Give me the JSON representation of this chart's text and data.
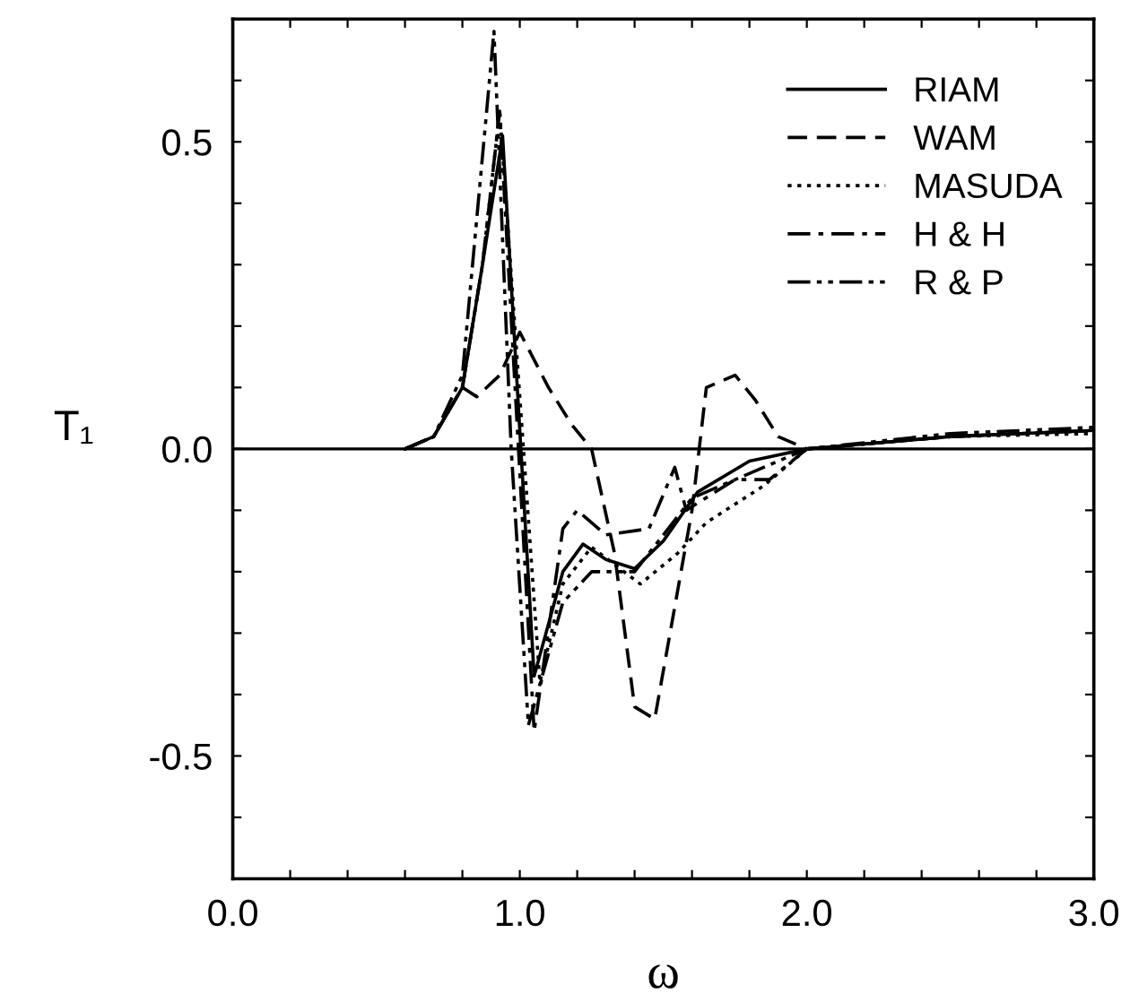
{
  "chart_data": {
    "type": "line",
    "xlabel": "ω",
    "ylabel": "T₁",
    "xlim": [
      0,
      3
    ],
    "ylim": [
      -0.7,
      0.7
    ],
    "xticks": [
      {
        "value": 0,
        "label": "0.0"
      },
      {
        "value": 0.2,
        "label": null
      },
      {
        "value": 0.4,
        "label": null
      },
      {
        "value": 0.6,
        "label": null
      },
      {
        "value": 0.8,
        "label": null
      },
      {
        "value": 1,
        "label": "1.0"
      },
      {
        "value": 1.2,
        "label": null
      },
      {
        "value": 1.4,
        "label": null
      },
      {
        "value": 1.6,
        "label": null
      },
      {
        "value": 1.8,
        "label": null
      },
      {
        "value": 2,
        "label": "2.0"
      },
      {
        "value": 2.2,
        "label": null
      },
      {
        "value": 2.4,
        "label": null
      },
      {
        "value": 2.6,
        "label": null
      },
      {
        "value": 2.8,
        "label": null
      },
      {
        "value": 3,
        "label": "3.0"
      }
    ],
    "yticks": [
      {
        "value": -0.6,
        "label": null
      },
      {
        "value": -0.5,
        "label": "-0.5"
      },
      {
        "value": -0.4,
        "label": null
      },
      {
        "value": -0.3,
        "label": null
      },
      {
        "value": -0.2,
        "label": null
      },
      {
        "value": -0.1,
        "label": null
      },
      {
        "value": 0,
        "label": "0.0"
      },
      {
        "value": 0.1,
        "label": null
      },
      {
        "value": 0.2,
        "label": null
      },
      {
        "value": 0.3,
        "label": null
      },
      {
        "value": 0.4,
        "label": null
      },
      {
        "value": 0.5,
        "label": "0.5"
      },
      {
        "value": 0.6,
        "label": null
      }
    ],
    "ref_lines": [
      {
        "axis": "y",
        "value": 0,
        "color": "#000000",
        "line_style": "solid"
      }
    ],
    "legend": "top right",
    "grid": false,
    "series": [
      {
        "name": "RIAM",
        "color": "#000000",
        "line_style": "solid",
        "x": [
          0.6,
          0.7,
          0.8,
          0.87,
          0.94,
          1.05,
          1.15,
          1.22,
          1.3,
          1.4,
          1.5,
          1.62,
          1.8,
          2.0,
          2.5,
          3.0
        ],
        "values": [
          0,
          0.02,
          0.1,
          0.3,
          0.51,
          -0.37,
          -0.2,
          -0.155,
          -0.18,
          -0.195,
          -0.15,
          -0.07,
          -0.02,
          0,
          0.02,
          0.03
        ]
      },
      {
        "name": "WAM",
        "color": "#000000",
        "line_style": "dashed",
        "x": [
          0.6,
          0.7,
          0.8,
          0.85,
          0.93,
          1.0,
          1.1,
          1.18,
          1.25,
          1.33,
          1.4,
          1.47,
          1.6,
          1.65,
          1.75,
          1.82,
          1.9,
          2.0,
          2.5,
          3.0
        ],
        "values": [
          0,
          0.02,
          0.1,
          0.085,
          0.12,
          0.19,
          0.1,
          0.04,
          0,
          -0.17,
          -0.42,
          -0.44,
          -0.1,
          0.1,
          0.12,
          0.08,
          0.02,
          0,
          0.02,
          0.03
        ]
      },
      {
        "name": "MASUDA",
        "color": "#000000",
        "line_style": "dotted",
        "x": [
          0.6,
          0.7,
          0.8,
          0.87,
          0.93,
          1.07,
          1.15,
          1.25,
          1.42,
          1.55,
          1.65,
          1.85,
          2.0,
          2.5,
          3.0
        ],
        "values": [
          0,
          0.02,
          0.1,
          0.3,
          0.55,
          -0.38,
          -0.22,
          -0.16,
          -0.22,
          -0.17,
          -0.12,
          -0.06,
          0,
          0.02,
          0.025
        ]
      },
      {
        "name": "H & H",
        "color": "#000000",
        "line_style": "dashdot",
        "x": [
          0.6,
          0.7,
          0.8,
          0.87,
          0.93,
          1.05,
          1.15,
          1.2,
          1.3,
          1.45,
          1.54,
          1.58,
          1.75,
          1.87,
          2.0,
          2.5,
          3.0
        ],
        "values": [
          0,
          0.02,
          0.1,
          0.3,
          0.55,
          -0.46,
          -0.13,
          -0.1,
          -0.14,
          -0.13,
          -0.03,
          -0.1,
          -0.05,
          -0.05,
          0,
          0.02,
          0.03
        ]
      },
      {
        "name": "R & P",
        "color": "#000000",
        "line_style": "dashdotdot",
        "x": [
          0.6,
          0.7,
          0.8,
          0.91,
          0.97,
          1.03,
          1.15,
          1.25,
          1.4,
          1.6,
          1.85,
          2.0,
          2.5,
          3.0
        ],
        "values": [
          0,
          0.02,
          0.12,
          0.68,
          0,
          -0.45,
          -0.25,
          -0.2,
          -0.2,
          -0.08,
          -0.03,
          0,
          0.025,
          0.035
        ]
      }
    ]
  }
}
